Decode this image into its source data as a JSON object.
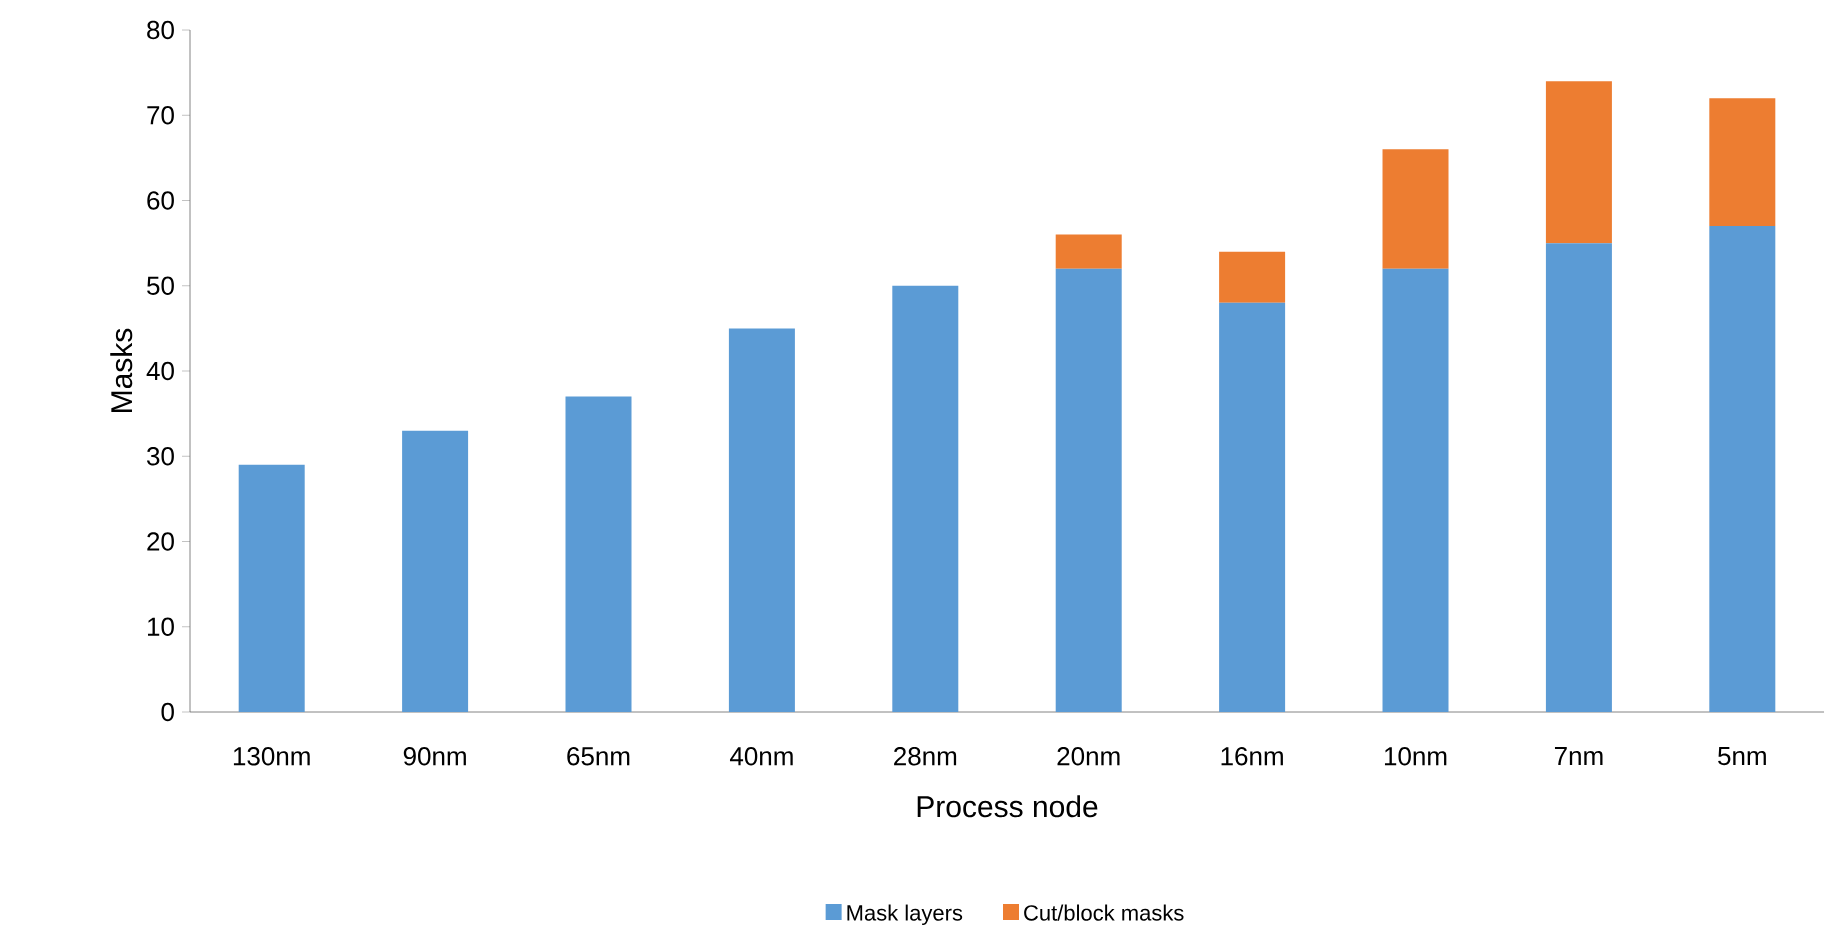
{
  "chart_data": {
    "type": "bar",
    "stacked": true,
    "xlabel": "Process node",
    "ylabel": "Masks",
    "categories": [
      "130nm",
      "90nm",
      "65nm",
      "40nm",
      "28nm",
      "20nm",
      "16nm",
      "10nm",
      "7nm",
      "5nm"
    ],
    "series": [
      {
        "name": "Mask layers",
        "color": "#5b9bd5",
        "values": [
          29,
          33,
          37,
          45,
          50,
          52,
          48,
          52,
          55,
          57
        ]
      },
      {
        "name": "Cut/block masks",
        "color": "#ed7d31",
        "values": [
          0,
          0,
          0,
          0,
          0,
          4,
          6,
          14,
          19,
          15
        ]
      }
    ],
    "ylim": [
      0,
      80
    ],
    "yticks": [
      0,
      10,
      20,
      30,
      40,
      50,
      60,
      70,
      80
    ],
    "grid": false,
    "legend": "bottom"
  }
}
